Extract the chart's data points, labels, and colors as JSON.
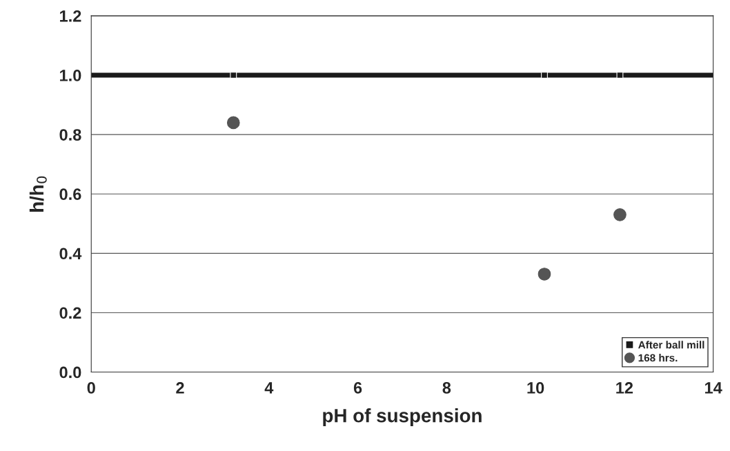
{
  "chart_data": {
    "type": "scatter",
    "xlabel": "pH of suspension",
    "ylabel": "h/h$_{0}$",
    "xlim": [
      0,
      14
    ],
    "xticks": [
      0,
      2,
      4,
      6,
      8,
      10,
      12,
      14
    ],
    "ylim": [
      0,
      1.2
    ],
    "yticks": [
      {
        "value": 0,
        "label": "0.0"
      },
      {
        "value": 0.2,
        "label": "0.2"
      },
      {
        "value": 0.4,
        "label": "0.4"
      },
      {
        "value": 0.6,
        "label": "0.6"
      },
      {
        "value": 0.8,
        "label": "0.8"
      },
      {
        "value": 1.0,
        "label": "1.0"
      },
      {
        "value": 1.2,
        "label": "1.2"
      }
    ],
    "grid": "y",
    "legend": "bottom right",
    "ref_lines": [
      {
        "axis": "y",
        "value": 1.0,
        "color": "#1a1a1a"
      }
    ],
    "series": [
      {
        "name": "After ball mill",
        "marker": "square",
        "color": "#1a1a1a",
        "x": [
          3.2,
          10.2,
          11.9
        ],
        "values": [
          1.0,
          1.0,
          1.0
        ]
      },
      {
        "name": "168 hrs.",
        "marker": "circle",
        "color": "#555555",
        "x": [
          3.2,
          10.2,
          11.9
        ],
        "values": [
          0.84,
          0.33,
          0.53
        ]
      }
    ]
  }
}
